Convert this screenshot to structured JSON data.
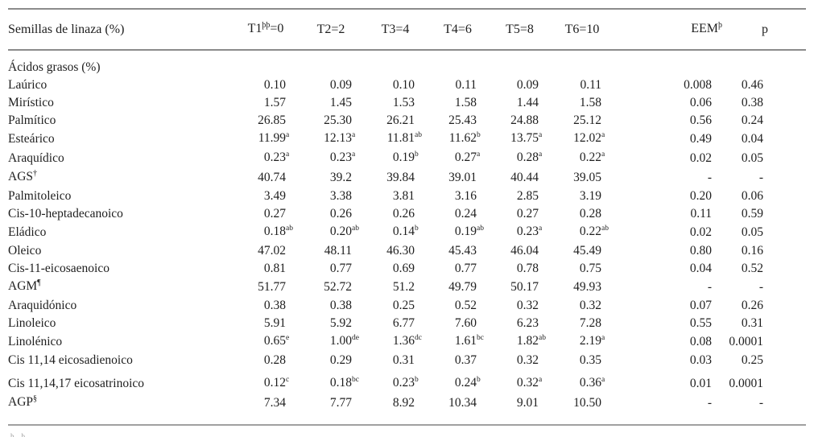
{
  "table": {
    "header": {
      "label": "Semillas de linaza (%)",
      "cols": [
        {
          "pre": "T1",
          "sup": "þþ",
          "post": "=0"
        },
        {
          "pre": "T2",
          "sup": "",
          "post": "=2"
        },
        {
          "pre": "T3",
          "sup": "",
          "post": "=4"
        },
        {
          "pre": "T4",
          "sup": "",
          "post": "=6"
        },
        {
          "pre": "T5",
          "sup": "",
          "post": "=8"
        },
        {
          "pre": "T6",
          "sup": "",
          "post": "=10"
        },
        {
          "pre": "EEM",
          "sup": "þ",
          "post": ""
        },
        {
          "pre": "p",
          "sup": "",
          "post": ""
        }
      ]
    },
    "section": "Ácidos grasos (%)",
    "rows": [
      {
        "label": "Laúrico",
        "sup": "",
        "values": [
          "0.10",
          "0.09",
          "0.10",
          "0.11",
          "0.09",
          "0.11",
          "0.008",
          "0.46"
        ]
      },
      {
        "label": "Mirístico",
        "sup": "",
        "values": [
          "1.57",
          "1.45",
          "1.53",
          "1.58",
          "1.44",
          "1.58",
          "0.06",
          "0.38"
        ]
      },
      {
        "label": "Palmítico",
        "sup": "",
        "values": [
          "26.85",
          "25.30",
          "26.21",
          "25.43",
          "24.88",
          "25.12",
          "0.56",
          "0.24"
        ]
      },
      {
        "label": "Esteárico",
        "sup": "",
        "values": [
          "11.99^a",
          "12.13^a",
          "11.81^ab",
          "11.62^b",
          "13.75^a",
          "12.02^a",
          "0.49",
          "0.04"
        ]
      },
      {
        "label": "Araquídico",
        "sup": "",
        "values": [
          "0.23^a",
          "0.23^a",
          "0.19^b",
          "0.27^a",
          "0.28^a",
          "0.22^a",
          "0.02",
          "0.05"
        ]
      },
      {
        "label": "AGS",
        "sup": "†",
        "values": [
          "40.74",
          "39.2",
          "39.84",
          "39.01",
          "40.44",
          "39.05",
          "-",
          "-"
        ]
      },
      {
        "label": "Palmitoleico",
        "sup": "",
        "values": [
          "3.49",
          "3.38",
          "3.81",
          "3.16",
          "2.85",
          "3.19",
          "0.20",
          "0.06"
        ]
      },
      {
        "label": "Cis-10-heptadecanoico",
        "sup": "",
        "values": [
          "0.27",
          "0.26",
          "0.26",
          "0.24",
          "0.27",
          "0.28",
          "0.11",
          "0.59"
        ]
      },
      {
        "label": "Eládico",
        "sup": "",
        "values": [
          "0.18^ab",
          "0.20^ab",
          "0.14^b",
          "0.19^ab",
          "0.23^a",
          "0.22^ab",
          "0.02",
          "0.05"
        ]
      },
      {
        "label": "Oleico",
        "sup": "",
        "values": [
          "47.02",
          "48.11",
          "46.30",
          "45.43",
          "46.04",
          "45.49",
          "0.80",
          "0.16"
        ]
      },
      {
        "label": "Cis-11-eicosaenoico",
        "sup": "",
        "values": [
          "0.81",
          "0.77",
          "0.69",
          "0.77",
          "0.78",
          "0.75",
          "0.04",
          "0.52"
        ]
      },
      {
        "label": "AGM",
        "sup": "¶",
        "values": [
          "51.77",
          "52.72",
          "51.2",
          "49.79",
          "50.17",
          "49.93",
          "-",
          "-"
        ]
      },
      {
        "label": "Araquidónico",
        "sup": "",
        "values": [
          "0.38",
          "0.38",
          "0.25",
          "0.52",
          "0.32",
          "0.32",
          "0.07",
          "0.26"
        ]
      },
      {
        "label": "Linoleico",
        "sup": "",
        "values": [
          "5.91",
          "5.92",
          "6.77",
          "7.60",
          "6.23",
          "7.28",
          "0.55",
          "0.31"
        ]
      },
      {
        "label": "Linolénico",
        "sup": "",
        "values": [
          "0.65^e",
          "1.00^de",
          "1.36^dc",
          "1.61^bc",
          "1.82^ab",
          "2.19^a",
          "0.08",
          "0.0001"
        ]
      },
      {
        "label": "Cis 11,14 eicosadienoico",
        "sup": "",
        "values": [
          "0.28",
          "0.29",
          "0.31",
          "0.37",
          "0.32",
          "0.35",
          "0.03",
          "0.25"
        ]
      },
      {
        "label": "Cis 11,14,17 eicosatrinoico",
        "sup": "",
        "extra_space": true,
        "values": [
          "0.12^c",
          "0.18^bc",
          "0.23^b",
          "0.24^b",
          "0.32^a",
          "0.36^a",
          "0.01",
          "0.0001"
        ]
      },
      {
        "label": "AGP",
        "sup": "§",
        "values": [
          "7.34",
          "7.77",
          "8.92",
          "10.34",
          "9.01",
          "10.50",
          "-",
          "-"
        ]
      }
    ],
    "footnote_fragment": "þþ"
  }
}
